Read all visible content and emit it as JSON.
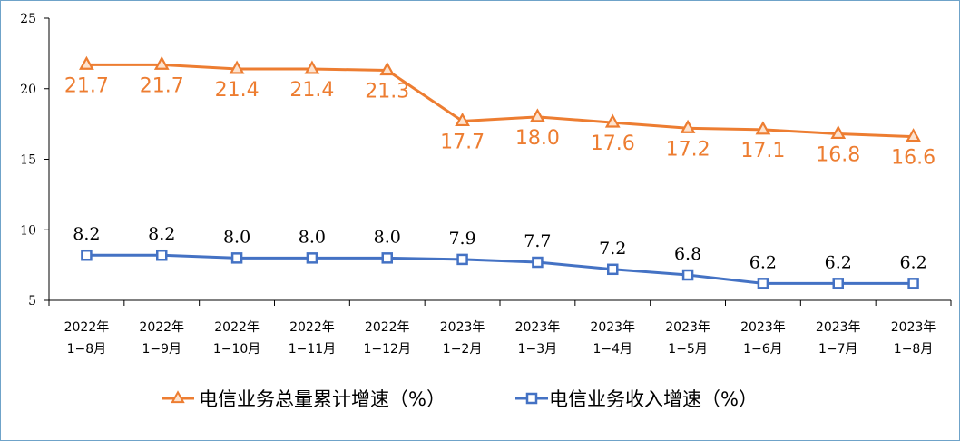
{
  "chart_data": {
    "type": "line",
    "categories": [
      [
        "2022年",
        "1−8月"
      ],
      [
        "2022年",
        "1−9月"
      ],
      [
        "2022年",
        "1−10月"
      ],
      [
        "2022年",
        "1−11月"
      ],
      [
        "2022年",
        "1−12月"
      ],
      [
        "2023年",
        "1−2月"
      ],
      [
        "2023年",
        "1−3月"
      ],
      [
        "2023年",
        "1−4月"
      ],
      [
        "2023年",
        "1−5月"
      ],
      [
        "2023年",
        "1−6月"
      ],
      [
        "2023年",
        "1−7月"
      ],
      [
        "2023年",
        "1−8月"
      ]
    ],
    "series": [
      {
        "name": "电信业务总量累计增速（%）",
        "color": "#ed7d31",
        "marker": "triangle",
        "values": [
          21.7,
          21.7,
          21.4,
          21.4,
          21.3,
          17.7,
          18.0,
          17.6,
          17.2,
          17.1,
          16.8,
          16.6
        ],
        "labels": [
          "21.7",
          "21.7",
          "21.4",
          "21.4",
          "21.3",
          "17.7",
          "18.0",
          "17.6",
          "17.2",
          "17.1",
          "16.8",
          "16.6"
        ]
      },
      {
        "name": "电信业务收入增速（%）",
        "color": "#4472c4",
        "marker": "square",
        "values": [
          8.2,
          8.2,
          8.0,
          8.0,
          8.0,
          7.9,
          7.7,
          7.2,
          6.8,
          6.2,
          6.2,
          6.2
        ],
        "labels": [
          "8.2",
          "8.2",
          "8.0",
          "8.0",
          "8.0",
          "7.9",
          "7.7",
          "7.2",
          "6.8",
          "6.2",
          "6.2",
          "6.2"
        ]
      }
    ],
    "yticks": [
      "5",
      "10",
      "15",
      "20",
      "25"
    ],
    "ylim": [
      5,
      25
    ],
    "grid": false,
    "legend_position": "bottom"
  }
}
